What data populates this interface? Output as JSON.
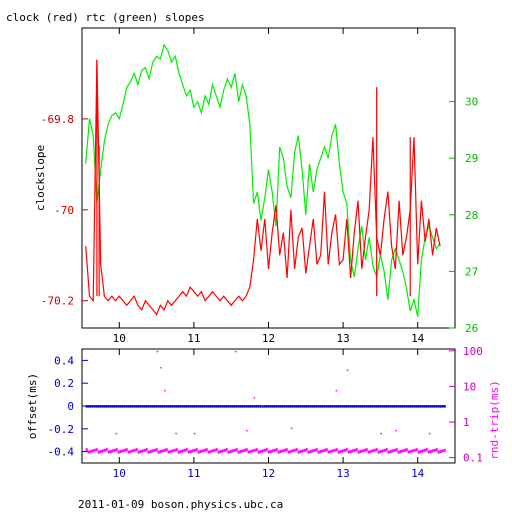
{
  "title": "clock (red) rtc (green) slopes",
  "footer": "2011-01-09 boson.physics.ubc.ca",
  "chart_data": [
    {
      "type": "line",
      "xlim": [
        9.5,
        14.5
      ],
      "xticks": [
        "10",
        "11",
        "12",
        "13",
        "14"
      ],
      "ylabel": "clockslope",
      "ylim": [
        -70.26,
        -69.6
      ],
      "left_ticks": [
        "-69.8",
        "-70",
        "-70.2"
      ],
      "right_ylim": [
        26,
        31.3
      ],
      "right_ticks": [
        "30",
        "29",
        "28",
        "27",
        "26"
      ],
      "colors": {
        "clock": "#ff0000",
        "rtc": "#00ee00",
        "axis_left": "#cc0000",
        "axis_right": "#00bb00"
      },
      "series": [
        {
          "axis": "right",
          "x": [
            9.55,
            9.6,
            9.65,
            9.7,
            9.75,
            9.8,
            9.85,
            9.9,
            9.95,
            10.0,
            10.05,
            10.1,
            10.15,
            10.2,
            10.25,
            10.3,
            10.35,
            10.4,
            10.45,
            10.5,
            10.55,
            10.6,
            10.65,
            10.7,
            10.75,
            10.8,
            10.85,
            10.9,
            10.95,
            11.0,
            11.05,
            11.1,
            11.15,
            11.2,
            11.25,
            11.3,
            11.35,
            11.4,
            11.45,
            11.5,
            11.55,
            11.6,
            11.65,
            11.7,
            11.75,
            11.8,
            11.85,
            11.9,
            11.95,
            12.0,
            12.05,
            12.1,
            12.15,
            12.2,
            12.25,
            12.3,
            12.35,
            12.4,
            12.45,
            12.5,
            12.55,
            12.6,
            12.65,
            12.7,
            12.75,
            12.8,
            12.85,
            12.9,
            12.95,
            13.0,
            13.05,
            13.1,
            13.15,
            13.2,
            13.25,
            13.3,
            13.35,
            13.4,
            13.45,
            13.5,
            13.55,
            13.6,
            13.65,
            13.7,
            13.75,
            13.8,
            13.85,
            13.9,
            13.95,
            14.0,
            14.05,
            14.1,
            14.15,
            14.2,
            14.25,
            14.3
          ],
          "y": [
            28.9,
            29.7,
            29.4,
            28.2,
            28.8,
            29.3,
            29.6,
            29.75,
            29.8,
            29.7,
            29.95,
            30.25,
            30.35,
            30.5,
            30.3,
            30.55,
            30.6,
            30.4,
            30.7,
            30.8,
            30.75,
            31.0,
            30.9,
            30.7,
            30.8,
            30.5,
            30.3,
            30.1,
            30.2,
            29.9,
            30.0,
            29.8,
            30.1,
            29.95,
            30.3,
            30.1,
            29.9,
            30.2,
            30.4,
            30.25,
            30.5,
            30.0,
            30.3,
            30.1,
            29.6,
            28.2,
            28.4,
            27.9,
            28.3,
            28.8,
            28.4,
            27.8,
            29.2,
            29.0,
            28.5,
            28.3,
            29.1,
            29.4,
            28.8,
            28.0,
            28.9,
            28.4,
            28.8,
            29.0,
            29.2,
            29.0,
            29.4,
            29.6,
            28.9,
            28.4,
            28.2,
            27.2,
            26.9,
            27.4,
            27.8,
            27.2,
            27.6,
            27.1,
            26.9,
            27.3,
            27.0,
            26.5,
            27.2,
            27.4,
            27.2,
            27.0,
            26.7,
            26.3,
            26.5,
            26.2,
            27.2,
            27.6,
            27.8,
            27.6,
            27.4,
            27.5
          ]
        },
        {
          "axis": "left",
          "x": [
            9.55,
            9.6,
            9.65,
            9.7,
            9.75,
            9.8,
            9.85,
            9.9,
            9.95,
            10.0,
            10.05,
            10.1,
            10.15,
            10.2,
            10.25,
            10.3,
            10.35,
            10.4,
            10.45,
            10.5,
            10.55,
            10.6,
            10.65,
            10.7,
            10.75,
            10.8,
            10.85,
            10.9,
            10.95,
            11.0,
            11.05,
            11.1,
            11.15,
            11.2,
            11.25,
            11.3,
            11.35,
            11.4,
            11.45,
            11.5,
            11.55,
            11.6,
            11.65,
            11.7,
            11.75,
            11.8,
            11.85,
            11.9,
            11.95,
            12.0,
            12.05,
            12.1,
            12.15,
            12.2,
            12.25,
            12.3,
            12.35,
            12.4,
            12.45,
            12.5,
            12.55,
            12.6,
            12.65,
            12.7,
            12.75,
            12.8,
            12.85,
            12.9,
            12.95,
            13.0,
            13.05,
            13.1,
            13.15,
            13.2,
            13.25,
            13.3,
            13.35,
            13.4,
            13.45,
            13.5,
            13.55,
            13.6,
            13.65,
            13.7,
            13.75,
            13.8,
            13.85,
            13.9,
            13.95,
            14.0,
            14.05,
            14.1,
            14.15,
            14.2,
            14.25,
            14.3
          ],
          "y": [
            -70.08,
            -70.19,
            -70.2,
            -69.67,
            -70.12,
            -70.19,
            -70.2,
            -70.19,
            -70.2,
            -70.19,
            -70.2,
            -70.21,
            -70.2,
            -70.19,
            -70.21,
            -70.22,
            -70.2,
            -70.21,
            -70.22,
            -70.23,
            -70.21,
            -70.22,
            -70.2,
            -70.21,
            -70.2,
            -70.19,
            -70.18,
            -70.19,
            -70.17,
            -70.18,
            -70.19,
            -70.18,
            -70.2,
            -70.19,
            -70.18,
            -70.19,
            -70.2,
            -70.19,
            -70.2,
            -70.21,
            -70.2,
            -70.19,
            -70.2,
            -70.19,
            -70.17,
            -70.11,
            -70.02,
            -70.09,
            -70.02,
            -70.13,
            -70.05,
            -69.99,
            -70.1,
            -70.05,
            -70.15,
            -70.0,
            -70.13,
            -70.06,
            -70.04,
            -70.14,
            -70.08,
            -70.02,
            -70.12,
            -70.1,
            -69.96,
            -70.12,
            -70.05,
            -70.01,
            -70.12,
            -70.11,
            -70.02,
            -70.15,
            -70.05,
            -69.98,
            -70.13,
            -70.06,
            -70.0,
            -69.84,
            -70.06,
            -70.1,
            -70.02,
            -69.96,
            -70.08,
            -70.13,
            -69.98,
            -70.1,
            -70.06,
            -70.0,
            -69.84,
            -70.12,
            -69.98,
            -70.07,
            -70.02,
            -70.1,
            -70.04,
            -70.08
          ]
        }
      ],
      "spikes": {
        "x": [
          9.7,
          9.73,
          13.45,
          13.9
        ],
        "y": [
          -69.67,
          -69.86,
          -69.73,
          -69.84
        ]
      }
    },
    {
      "type": "scatter",
      "xlim": [
        9.5,
        14.5
      ],
      "xticks": [
        "10",
        "11",
        "12",
        "13",
        "14"
      ],
      "ylabel": "offset(ms)",
      "ylim": [
        -0.5,
        0.5
      ],
      "left_ticks": [
        "0.4",
        "0.2",
        "0",
        "-0.2",
        "-0.4"
      ],
      "y2label": "rnd-trip(ms)",
      "right_ticks": [
        "100",
        "10",
        "1",
        "0.1"
      ],
      "y2lim_log10": [
        -1.15,
        2.05
      ],
      "colors": {
        "offset": "#0000cc",
        "rtt": "#ff00ff",
        "axis_left": "#0000cc",
        "axis_right": "#cc00cc"
      },
      "series": [
        {
          "axis": "left",
          "x_range": [
            9.55,
            14.35
          ],
          "y": 0.0
        },
        {
          "axis": "right",
          "x_range": [
            9.55,
            14.35
          ],
          "y": 0.15
        }
      ],
      "outliers_right": {
        "x": [
          9.95,
          10.5,
          10.55,
          10.6,
          10.75,
          11.0,
          11.55,
          11.7,
          11.8,
          11.9,
          12.3,
          12.9,
          13.05,
          13.5,
          13.7,
          14.15
        ],
        "y": [
          0.5,
          100,
          35,
          8,
          0.5,
          0.5,
          100,
          0.6,
          5,
          3,
          0.7,
          8,
          30,
          0.5,
          0.6,
          0.5
        ]
      }
    }
  ]
}
